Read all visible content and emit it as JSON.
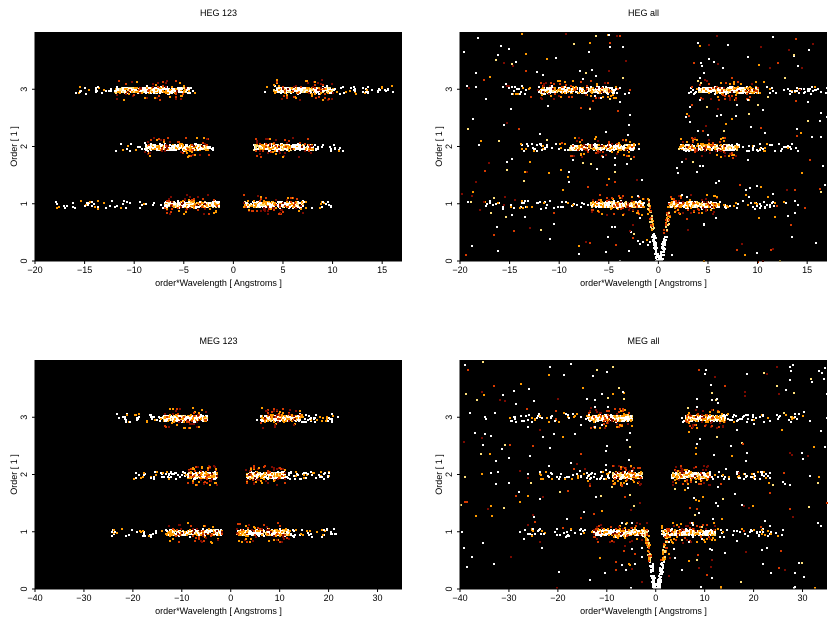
{
  "chart_data": [
    {
      "type": "heatmap",
      "title": "HEG 123",
      "xlabel": "order*Wavelength [ Angstroms ]",
      "ylabel": "Order [ 1 ]",
      "xlim": [
        -20,
        17
      ],
      "ylim": [
        0,
        4
      ],
      "xticks": [
        -20,
        -15,
        -10,
        -5,
        0,
        5,
        10,
        15
      ],
      "yticks": [
        0,
        1,
        2,
        3
      ],
      "colormap": [
        "#000000",
        "#7a0a00",
        "#d63a00",
        "#ff9a00",
        "#ffe07a",
        "#ffffff"
      ],
      "bands": [
        {
          "order": 1,
          "neg": [
            -18,
            -1.5
          ],
          "neg_core": [
            -7,
            -1.5
          ],
          "pos": [
            1,
            10
          ],
          "pos_core": [
            1,
            7
          ]
        },
        {
          "order": 2,
          "neg": [
            -12,
            -2
          ],
          "neg_core": [
            -9,
            -2.5
          ],
          "pos": [
            2,
            11
          ],
          "pos_core": [
            2,
            8
          ]
        },
        {
          "order": 3,
          "neg": [
            -16,
            -4
          ],
          "neg_core": [
            -12,
            -4.5
          ],
          "pos": [
            3,
            16
          ],
          "pos_core": [
            4,
            10
          ]
        }
      ]
    },
    {
      "type": "heatmap",
      "title": "HEG all",
      "xlabel": "order*Wavelength [ Angstroms ]",
      "ylabel": "Order [ 1 ]",
      "xlim": [
        -20,
        17
      ],
      "ylim": [
        0,
        4
      ],
      "xticks": [
        -20,
        -15,
        -10,
        -5,
        0,
        5,
        10,
        15
      ],
      "yticks": [
        0,
        1,
        2,
        3
      ],
      "colormap": [
        "#000000",
        "#7a0a00",
        "#d63a00",
        "#ff9a00",
        "#ffe07a",
        "#ffffff"
      ],
      "bands": [
        {
          "order": 1,
          "neg": [
            -18,
            -1
          ],
          "neg_core": [
            -7,
            -1.5
          ],
          "pos": [
            1,
            12
          ],
          "pos_core": [
            1,
            6
          ]
        },
        {
          "order": 2,
          "neg": [
            -14,
            -2
          ],
          "neg_core": [
            -9,
            -2.5
          ],
          "pos": [
            2,
            14
          ],
          "pos_core": [
            2,
            8
          ]
        },
        {
          "order": 3,
          "neg": [
            -16,
            -4
          ],
          "neg_core": [
            -12,
            -4.5
          ],
          "pos": [
            3,
            17
          ],
          "pos_core": [
            4,
            10
          ]
        }
      ],
      "background": true
    },
    {
      "type": "heatmap",
      "title": "MEG 123",
      "xlabel": "order*Wavelength [ Angstroms ]",
      "ylabel": "Order [ 1 ]",
      "xlim": [
        -40,
        35
      ],
      "ylim": [
        0,
        4
      ],
      "xticks": [
        -40,
        -30,
        -20,
        -10,
        0,
        10,
        20,
        30
      ],
      "yticks": [
        0,
        1,
        2,
        3
      ],
      "colormap": [
        "#000000",
        "#7a0a00",
        "#d63a00",
        "#ff9a00",
        "#ffe07a",
        "#ffffff"
      ],
      "bands": [
        {
          "order": 1,
          "neg": [
            -25,
            -1.5
          ],
          "neg_core": [
            -13,
            -2
          ],
          "pos": [
            1,
            22
          ],
          "pos_core": [
            1,
            12
          ]
        },
        {
          "order": 2,
          "neg": [
            -20,
            -3
          ],
          "neg_core": [
            -9,
            -3
          ],
          "pos": [
            3,
            20
          ],
          "pos_core": [
            3,
            11
          ]
        },
        {
          "order": 3,
          "neg": [
            -25,
            -5
          ],
          "neg_core": [
            -14,
            -5
          ],
          "pos": [
            5,
            22
          ],
          "pos_core": [
            6,
            14
          ]
        }
      ]
    },
    {
      "type": "heatmap",
      "title": "MEG all",
      "xlabel": "order*Wavelength [ Angstroms ]",
      "ylabel": "Order [ 1 ]",
      "xlim": [
        -40,
        35
      ],
      "ylim": [
        0,
        4
      ],
      "xticks": [
        -40,
        -30,
        -20,
        -10,
        0,
        10,
        20,
        30
      ],
      "yticks": [
        0,
        1,
        2,
        3
      ],
      "colormap": [
        "#000000",
        "#7a0a00",
        "#d63a00",
        "#ff9a00",
        "#ffe07a",
        "#ffffff"
      ],
      "bands": [
        {
          "order": 1,
          "neg": [
            -28,
            -1
          ],
          "neg_core": [
            -13,
            -2
          ],
          "pos": [
            1,
            26
          ],
          "pos_core": [
            1,
            12
          ]
        },
        {
          "order": 2,
          "neg": [
            -24,
            -3
          ],
          "neg_core": [
            -9,
            -3
          ],
          "pos": [
            3,
            24
          ],
          "pos_core": [
            3,
            11
          ]
        },
        {
          "order": 3,
          "neg": [
            -30,
            -5
          ],
          "neg_core": [
            -14,
            -5
          ],
          "pos": [
            5,
            30
          ],
          "pos_core": [
            6,
            14
          ]
        }
      ],
      "background": true
    }
  ]
}
